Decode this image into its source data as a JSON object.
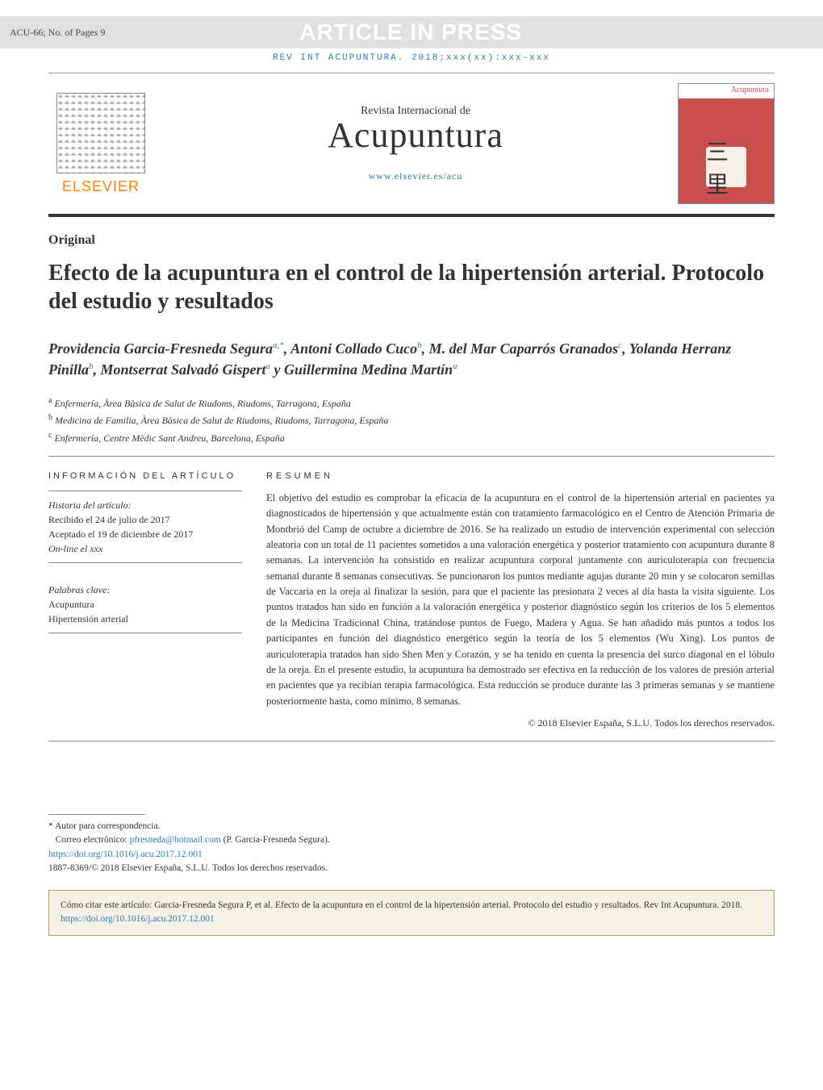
{
  "banner": {
    "left": "ACU-66;   No. of Pages 9",
    "center": "ARTICLE IN PRESS"
  },
  "citation_line": "REV INT ACUPUNTURA. 2018;xxx(xx):xxx–xxx",
  "publisher": {
    "name": "ELSEVIER",
    "name_color": "#ff7f00"
  },
  "journal": {
    "supertitle": "Revista Internacional de",
    "title": "Acupuntura",
    "url": "www.elsevier.es/acu",
    "cover_label": "Acupuntura",
    "cover_glyph": "三里"
  },
  "article": {
    "type": "Original",
    "title": "Efecto de la acupuntura en el control de la hipertensión arterial. Protocolo del estudio y resultados"
  },
  "authors_html": "Providencia Garcia-Fresneda Segura<sup>a,*</sup>, Antoni Collado Cuco<sup>b</sup>, M. del Mar Caparrós Granados<sup>c</sup>, Yolanda Herranz Pinilla<sup>b</sup>, Montserrat Salvadó Gispert<sup>a</sup> y Guillermina Medina Martín<sup>a</sup>",
  "affiliations": [
    {
      "sup": "a",
      "text": "Enfermería, Àrea Bàsica de Salut de Riudoms, Riudoms, Tarragona, España"
    },
    {
      "sup": "b",
      "text": "Medicina de Familia, Àrea Bàsica de Salut de Riudoms, Riudoms, Tarragona, España"
    },
    {
      "sup": "c",
      "text": "Enfermería, Centre Mèdic Sant Andreu, Barcelona, España"
    }
  ],
  "info": {
    "heading": "información del artículo",
    "history_label": "Historia del artículo:",
    "received": "Recibido el 24 de julio de 2017",
    "accepted": "Aceptado el 19 de diciembre de 2017",
    "online": "On-line el xxx",
    "keywords_label": "Palabras clave:",
    "keywords": [
      "Acupuntura",
      "Hipertensión arterial"
    ]
  },
  "abstract": {
    "heading": "resumen",
    "text": "El objetivo del estudio es comprobar la eficacia de la acupuntura en el control de la hipertensión arterial en pacientes ya diagnosticados de hipertensión y que actualmente están con tratamiento farmacológico en el Centro de Atención Primaria de Montbrió del Camp de octubre a diciembre de 2016. Se ha realizado un estudio de intervención experimental con selección aleatoria con un total de 11 pacientes sometidos a una valoración energética y posterior tratamiento con acupuntura durante 8 semanas. La intervención ha consistido en realizar acupuntura corporal juntamente con auriculoterapia con frecuencia semanal durante 8 semanas consecutivas. Se puncionaron los puntos mediante agujas durante 20 min y se colocaron semillas de Vaccaria en la oreja al finalizar la sesión, para que el paciente las presionara 2 veces al día hasta la visita siguiente. Los puntos tratados han sido en función a la valoración energética y posterior diagnóstico según los criterios de los 5 elementos de la Medicina Tradicional China, tratándose puntos de Fuego, Madera y Agua. Se han añadido más puntos a todos los participantes en función del diagnóstico energético según la teoría de los 5 elementos (Wu Xing). Los puntos de auriculoterapia tratados han sido Shen Men y Corazón, y se ha tenido en cuenta la presencia del surco diagonal en el lóbulo de la oreja. En el presente estudio, la acupuntura ha demostrado ser efectiva en la reducción de los valores de presión arterial en pacientes que ya recibían terapia farmacológica. Esta reducción se produce durante las 3 primeras semanas y se mantiene posteriormente hasta, como mínimo, 8 semanas.",
    "copyright": "© 2018 Elsevier España, S.L.U. Todos los derechos reservados."
  },
  "footer": {
    "corresponding": "* Autor para correspondencia.",
    "email_label": "Correo electrónico:",
    "email": "pfresneda@hotmail.com",
    "email_suffix": " (P. Garcia-Fresneda Segura).",
    "doi": "https://doi.org/10.1016/j.acu.2017.12.001",
    "issn_line": "1887-8369/© 2018 Elsevier España, S.L.U. Todos los derechos reservados."
  },
  "citation_box": {
    "prefix": "Cómo citar este artículo: Garcia-Fresneda Segura P, et al. Efecto de la acupuntura en el control de la hipertensión arterial. Protocolo del estudio y resultados. Rev Int Acupuntura. 2018. ",
    "link": "https://doi.org/10.1016/j.acu.2017.12.001"
  },
  "colors": {
    "link": "#2a7ab0",
    "banner_bg": "#e0e0e0",
    "banner_text": "#ffffff",
    "rule": "#888888",
    "cover_bg": "#c94f4f",
    "box_border": "#b0a060",
    "box_bg": "#f4f0e6"
  }
}
